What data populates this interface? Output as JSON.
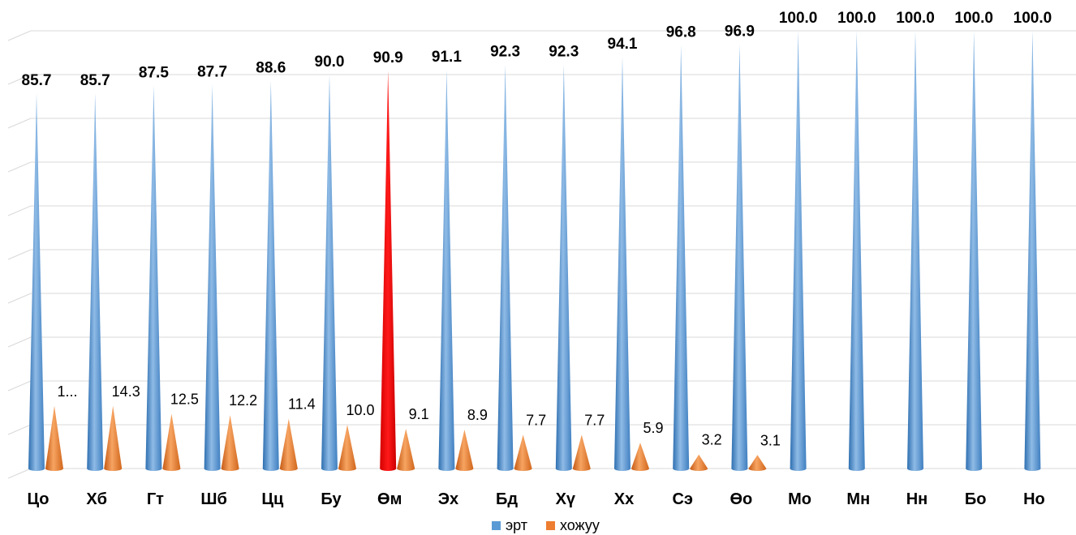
{
  "chart_data": {
    "type": "bar",
    "bar_shape": "cone-3d",
    "categories": [
      "Цо",
      "Хб",
      "Гт",
      "Шб",
      "Цц",
      "Бу",
      "Өм",
      "Эх",
      "Бд",
      "Хү",
      "Хх",
      "Сэ",
      "Өо",
      "Мо",
      "Мн",
      "Нн",
      "Бо",
      "Но"
    ],
    "series": [
      {
        "name": "эрт",
        "color": "#5b9bd5",
        "values": [
          85.7,
          85.7,
          87.5,
          87.7,
          88.6,
          90.0,
          90.9,
          91.1,
          92.3,
          92.3,
          94.1,
          96.8,
          96.9,
          100.0,
          100.0,
          100.0,
          100.0,
          100.0
        ],
        "labels": [
          "85.7",
          "85.7",
          "87.5",
          "87.7",
          "88.6",
          "90.0",
          "90.9",
          "91.1",
          "92.3",
          "92.3",
          "94.1",
          "96.8",
          "96.9",
          "100.0",
          "100.0",
          "100.0",
          "100.0",
          "100.0"
        ]
      },
      {
        "name": "хожуу",
        "color": "#ed7d31",
        "values": [
          14.3,
          14.3,
          12.5,
          12.2,
          11.4,
          10.0,
          9.1,
          8.9,
          7.7,
          7.7,
          5.9,
          3.2,
          3.1,
          0,
          0,
          0,
          0,
          0
        ],
        "labels": [
          "1...",
          "14.3",
          "12.5",
          "12.2",
          "11.4",
          "10.0",
          "9.1",
          "8.9",
          "7.7",
          "7.7",
          "5.9",
          "3.2",
          "3.1",
          "",
          "",
          "",
          "",
          ""
        ]
      }
    ],
    "highlight": {
      "category": "Өм",
      "series": "эрт",
      "color": "#ff0000"
    },
    "ylim": [
      0,
      100
    ],
    "grid": true,
    "legend": "bottom-center",
    "title": "",
    "xlabel": "",
    "ylabel": ""
  }
}
